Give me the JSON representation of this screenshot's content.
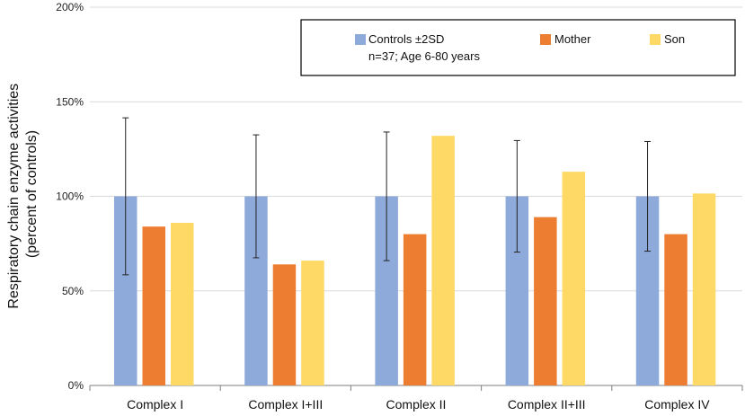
{
  "chart_data": {
    "type": "bar",
    "categories": [
      "Complex I",
      "Complex I+III",
      "Complex II",
      "Complex II+III",
      "Complex IV"
    ],
    "series": [
      {
        "name": "Controls ±2SD",
        "color": "#8eaadb",
        "values": [
          100,
          100,
          100,
          100,
          100
        ],
        "error_low": [
          58.5,
          67.5,
          66,
          70.5,
          71
        ],
        "error_high": [
          141.5,
          132.5,
          134,
          129.5,
          129
        ]
      },
      {
        "name": "Mother",
        "color": "#ed7d31",
        "values": [
          84,
          64,
          80,
          89,
          80
        ]
      },
      {
        "name": "Son",
        "color": "#ffd966",
        "values": [
          86,
          66,
          132,
          113,
          101.5
        ]
      }
    ],
    "legend_note": "n=37; Age 6-80 years",
    "ylabel_lines": [
      "Respiratory chain enzyme activities",
      "(percent of controls)"
    ],
    "xlabel": "",
    "ylim": [
      0,
      200
    ],
    "yticks": [
      0,
      50,
      100,
      150,
      200
    ],
    "ytick_labels": [
      "0%",
      "50%",
      "100%",
      "150%",
      "200%"
    ],
    "legend_position": "top-right"
  }
}
